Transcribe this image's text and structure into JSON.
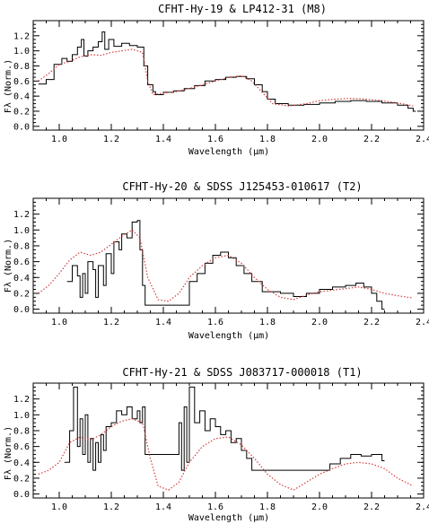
{
  "chart_data": [
    {
      "type": "line",
      "title": "CFHT-Hy-19 & LP412-31 (M8)",
      "xlabel": "Wavelength (μm)",
      "ylabel": "Fλ (Norm.)",
      "xlim": [
        0.9,
        2.4
      ],
      "ylim": [
        -0.05,
        1.4
      ],
      "xticks": [
        "1.0",
        "1.2",
        "1.4",
        "1.6",
        "1.8",
        "2.0",
        "2.2",
        "2.4"
      ],
      "yticks": [
        "0.0",
        "0.2",
        "0.4",
        "0.6",
        "0.8",
        "1.0",
        "1.2"
      ],
      "grid": false,
      "series": [
        {
          "style": "histogram",
          "color": "#000000",
          "points": [
            [
              0.92,
              0.56
            ],
            [
              0.95,
              0.62
            ],
            [
              0.98,
              0.82
            ],
            [
              1.01,
              0.9
            ],
            [
              1.03,
              0.86
            ],
            [
              1.05,
              0.95
            ],
            [
              1.07,
              1.05
            ],
            [
              1.085,
              1.15
            ],
            [
              1.095,
              0.93
            ],
            [
              1.11,
              1.0
            ],
            [
              1.13,
              1.05
            ],
            [
              1.15,
              1.12
            ],
            [
              1.165,
              1.25
            ],
            [
              1.175,
              1.02
            ],
            [
              1.19,
              1.15
            ],
            [
              1.21,
              1.06
            ],
            [
              1.24,
              1.1
            ],
            [
              1.27,
              1.07
            ],
            [
              1.3,
              1.05
            ],
            [
              1.325,
              0.8
            ],
            [
              1.34,
              0.55
            ],
            [
              1.36,
              0.46
            ],
            [
              1.37,
              0.42
            ],
            [
              1.4,
              0.45
            ],
            [
              1.44,
              0.47
            ],
            [
              1.48,
              0.5
            ],
            [
              1.52,
              0.54
            ],
            [
              1.56,
              0.6
            ],
            [
              1.6,
              0.62
            ],
            [
              1.64,
              0.65
            ],
            [
              1.68,
              0.66
            ],
            [
              1.72,
              0.63
            ],
            [
              1.75,
              0.55
            ],
            [
              1.78,
              0.46
            ],
            [
              1.8,
              0.36
            ],
            [
              1.83,
              0.3
            ],
            [
              1.88,
              0.28
            ],
            [
              1.94,
              0.29
            ],
            [
              2.0,
              0.31
            ],
            [
              2.06,
              0.33
            ],
            [
              2.12,
              0.34
            ],
            [
              2.18,
              0.33
            ],
            [
              2.24,
              0.31
            ],
            [
              2.3,
              0.28
            ],
            [
              2.34,
              0.24
            ],
            [
              2.36,
              0.2
            ]
          ]
        },
        {
          "style": "dotted",
          "color": "#d63c3c",
          "points": [
            [
              0.92,
              0.6
            ],
            [
              0.96,
              0.7
            ],
            [
              1.0,
              0.82
            ],
            [
              1.04,
              0.86
            ],
            [
              1.08,
              0.92
            ],
            [
              1.12,
              0.95
            ],
            [
              1.16,
              0.94
            ],
            [
              1.2,
              0.98
            ],
            [
              1.24,
              1.0
            ],
            [
              1.28,
              1.02
            ],
            [
              1.32,
              0.98
            ],
            [
              1.34,
              0.6
            ],
            [
              1.36,
              0.42
            ],
            [
              1.4,
              0.44
            ],
            [
              1.45,
              0.46
            ],
            [
              1.5,
              0.5
            ],
            [
              1.55,
              0.55
            ],
            [
              1.6,
              0.6
            ],
            [
              1.65,
              0.65
            ],
            [
              1.7,
              0.67
            ],
            [
              1.74,
              0.6
            ],
            [
              1.78,
              0.45
            ],
            [
              1.82,
              0.3
            ],
            [
              1.88,
              0.27
            ],
            [
              1.95,
              0.3
            ],
            [
              2.0,
              0.34
            ],
            [
              2.06,
              0.36
            ],
            [
              2.12,
              0.37
            ],
            [
              2.18,
              0.36
            ],
            [
              2.24,
              0.34
            ],
            [
              2.3,
              0.31
            ],
            [
              2.36,
              0.27
            ]
          ]
        }
      ]
    },
    {
      "type": "line",
      "title": "CFHT-Hy-20 & SDSS J125453-010617 (T2)",
      "xlabel": "Wavelength (μm)",
      "ylabel": "Fλ (Norm.)",
      "xlim": [
        0.9,
        2.4
      ],
      "ylim": [
        -0.05,
        1.4
      ],
      "xticks": [
        "1.0",
        "1.2",
        "1.4",
        "1.6",
        "1.8",
        "2.0",
        "2.2",
        "2.4"
      ],
      "yticks": [
        "0.0",
        "0.2",
        "0.4",
        "0.6",
        "0.8",
        "1.0",
        "1.2"
      ],
      "grid": false,
      "series": [
        {
          "style": "histogram",
          "color": "#000000",
          "points": [
            [
              1.03,
              0.35
            ],
            [
              1.05,
              0.55
            ],
            [
              1.07,
              0.42
            ],
            [
              1.08,
              0.15
            ],
            [
              1.09,
              0.45
            ],
            [
              1.1,
              0.2
            ],
            [
              1.11,
              0.6
            ],
            [
              1.13,
              0.5
            ],
            [
              1.14,
              0.15
            ],
            [
              1.15,
              0.55
            ],
            [
              1.17,
              0.3
            ],
            [
              1.18,
              0.7
            ],
            [
              1.2,
              0.45
            ],
            [
              1.21,
              0.85
            ],
            [
              1.23,
              0.75
            ],
            [
              1.24,
              0.95
            ],
            [
              1.26,
              0.9
            ],
            [
              1.28,
              1.1
            ],
            [
              1.3,
              1.12
            ],
            [
              1.31,
              0.75
            ],
            [
              1.32,
              0.3
            ],
            [
              1.33,
              0.05
            ],
            [
              1.5,
              0.35
            ],
            [
              1.53,
              0.45
            ],
            [
              1.56,
              0.58
            ],
            [
              1.59,
              0.68
            ],
            [
              1.62,
              0.72
            ],
            [
              1.65,
              0.65
            ],
            [
              1.68,
              0.55
            ],
            [
              1.71,
              0.45
            ],
            [
              1.74,
              0.35
            ],
            [
              1.78,
              0.22
            ],
            [
              1.85,
              0.2
            ],
            [
              1.9,
              0.16
            ],
            [
              1.95,
              0.2
            ],
            [
              2.0,
              0.25
            ],
            [
              2.05,
              0.28
            ],
            [
              2.1,
              0.3
            ],
            [
              2.14,
              0.33
            ],
            [
              2.17,
              0.28
            ],
            [
              2.2,
              0.2
            ],
            [
              2.22,
              0.1
            ],
            [
              2.24,
              0.0
            ]
          ]
        },
        {
          "style": "dotted",
          "color": "#d63c3c",
          "points": [
            [
              0.92,
              0.2
            ],
            [
              0.96,
              0.3
            ],
            [
              1.0,
              0.45
            ],
            [
              1.04,
              0.62
            ],
            [
              1.08,
              0.72
            ],
            [
              1.12,
              0.68
            ],
            [
              1.16,
              0.72
            ],
            [
              1.2,
              0.82
            ],
            [
              1.24,
              0.92
            ],
            [
              1.28,
              1.0
            ],
            [
              1.31,
              0.9
            ],
            [
              1.34,
              0.4
            ],
            [
              1.38,
              0.12
            ],
            [
              1.42,
              0.1
            ],
            [
              1.46,
              0.2
            ],
            [
              1.5,
              0.4
            ],
            [
              1.55,
              0.55
            ],
            [
              1.6,
              0.65
            ],
            [
              1.65,
              0.68
            ],
            [
              1.7,
              0.58
            ],
            [
              1.75,
              0.4
            ],
            [
              1.8,
              0.25
            ],
            [
              1.85,
              0.15
            ],
            [
              1.9,
              0.12
            ],
            [
              1.95,
              0.18
            ],
            [
              2.0,
              0.22
            ],
            [
              2.05,
              0.24
            ],
            [
              2.1,
              0.26
            ],
            [
              2.15,
              0.28
            ],
            [
              2.2,
              0.25
            ],
            [
              2.25,
              0.2
            ],
            [
              2.3,
              0.17
            ],
            [
              2.36,
              0.14
            ]
          ]
        }
      ]
    },
    {
      "type": "line",
      "title": "CFHT-Hy-21 & SDSS J083717-000018 (T1)",
      "xlabel": "Wavelength (μm)",
      "ylabel": "Fλ (Norm.)",
      "xlim": [
        0.9,
        2.4
      ],
      "ylim": [
        -0.05,
        1.4
      ],
      "xticks": [
        "1.0",
        "1.2",
        "1.4",
        "1.6",
        "1.8",
        "2.0",
        "2.2",
        "2.4"
      ],
      "yticks": [
        "0.0",
        "0.2",
        "0.4",
        "0.6",
        "0.8",
        "1.0",
        "1.2"
      ],
      "grid": false,
      "series": [
        {
          "style": "histogram",
          "color": "#000000",
          "points": [
            [
              1.02,
              0.4
            ],
            [
              1.04,
              0.8
            ],
            [
              1.055,
              1.35
            ],
            [
              1.07,
              0.6
            ],
            [
              1.08,
              0.95
            ],
            [
              1.09,
              0.5
            ],
            [
              1.1,
              1.0
            ],
            [
              1.11,
              0.4
            ],
            [
              1.12,
              0.7
            ],
            [
              1.13,
              0.3
            ],
            [
              1.14,
              0.65
            ],
            [
              1.15,
              0.4
            ],
            [
              1.16,
              0.75
            ],
            [
              1.17,
              0.55
            ],
            [
              1.18,
              0.85
            ],
            [
              1.2,
              0.9
            ],
            [
              1.22,
              1.05
            ],
            [
              1.24,
              1.0
            ],
            [
              1.26,
              1.1
            ],
            [
              1.28,
              0.95
            ],
            [
              1.3,
              1.05
            ],
            [
              1.31,
              0.9
            ],
            [
              1.32,
              1.1
            ],
            [
              1.33,
              0.5
            ],
            [
              1.46,
              0.9
            ],
            [
              1.47,
              0.3
            ],
            [
              1.48,
              1.1
            ],
            [
              1.49,
              0.4
            ],
            [
              1.5,
              1.35
            ],
            [
              1.52,
              0.9
            ],
            [
              1.54,
              1.05
            ],
            [
              1.56,
              0.8
            ],
            [
              1.58,
              0.95
            ],
            [
              1.6,
              0.85
            ],
            [
              1.62,
              0.75
            ],
            [
              1.64,
              0.8
            ],
            [
              1.66,
              0.65
            ],
            [
              1.68,
              0.7
            ],
            [
              1.7,
              0.55
            ],
            [
              1.72,
              0.45
            ],
            [
              1.74,
              0.3
            ],
            [
              2.0,
              0.3
            ],
            [
              2.04,
              0.38
            ],
            [
              2.08,
              0.45
            ],
            [
              2.12,
              0.5
            ],
            [
              2.16,
              0.48
            ],
            [
              2.2,
              0.5
            ],
            [
              2.24,
              0.42
            ]
          ]
        },
        {
          "style": "dotted",
          "color": "#d63c3c",
          "points": [
            [
              0.92,
              0.25
            ],
            [
              0.96,
              0.3
            ],
            [
              1.0,
              0.4
            ],
            [
              1.04,
              0.65
            ],
            [
              1.08,
              0.72
            ],
            [
              1.12,
              0.68
            ],
            [
              1.16,
              0.75
            ],
            [
              1.2,
              0.85
            ],
            [
              1.24,
              0.92
            ],
            [
              1.28,
              0.95
            ],
            [
              1.32,
              0.9
            ],
            [
              1.35,
              0.45
            ],
            [
              1.38,
              0.1
            ],
            [
              1.42,
              0.05
            ],
            [
              1.46,
              0.15
            ],
            [
              1.5,
              0.4
            ],
            [
              1.55,
              0.6
            ],
            [
              1.6,
              0.7
            ],
            [
              1.65,
              0.72
            ],
            [
              1.7,
              0.62
            ],
            [
              1.75,
              0.45
            ],
            [
              1.8,
              0.25
            ],
            [
              1.85,
              0.12
            ],
            [
              1.9,
              0.05
            ],
            [
              1.95,
              0.15
            ],
            [
              2.0,
              0.25
            ],
            [
              2.05,
              0.32
            ],
            [
              2.1,
              0.38
            ],
            [
              2.15,
              0.4
            ],
            [
              2.2,
              0.38
            ],
            [
              2.25,
              0.32
            ],
            [
              2.3,
              0.2
            ],
            [
              2.36,
              0.1
            ]
          ]
        }
      ]
    }
  ]
}
